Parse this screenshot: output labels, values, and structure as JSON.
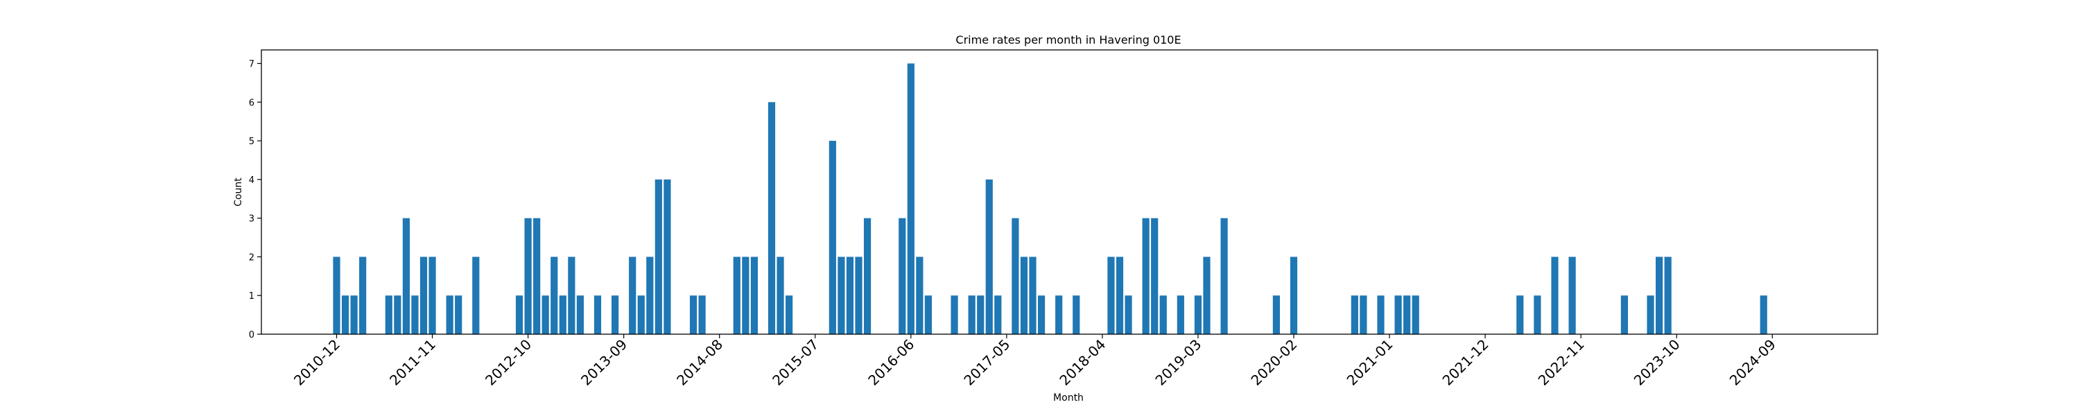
{
  "chart_data": {
    "type": "bar",
    "title": "Crime rates per month in Havering 010E",
    "xlabel": "Month",
    "ylabel": "Count",
    "ylim": [
      0,
      7.35
    ],
    "yticks": [
      0,
      1,
      2,
      3,
      4,
      5,
      6,
      7
    ],
    "xticks": [
      "2010-12",
      "2011-11",
      "2012-10",
      "2013-09",
      "2014-08",
      "2015-07",
      "2016-06",
      "2017-05",
      "2018-04",
      "2019-03",
      "2020-02",
      "2021-01",
      "2021-12",
      "2022-11",
      "2023-10",
      "2024-09"
    ],
    "bar_color": "#1f77b4",
    "grid": false,
    "legend": "none",
    "bars": [
      {
        "x": "2010-12",
        "y": 2
      },
      {
        "x": "2011-01",
        "y": 1
      },
      {
        "x": "2011-02",
        "y": 1
      },
      {
        "x": "2011-03",
        "y": 2
      },
      {
        "x": "2011-06",
        "y": 1
      },
      {
        "x": "2011-07",
        "y": 1
      },
      {
        "x": "2011-08",
        "y": 3
      },
      {
        "x": "2011-09",
        "y": 1
      },
      {
        "x": "2011-10",
        "y": 2
      },
      {
        "x": "2011-11",
        "y": 2
      },
      {
        "x": "2012-01",
        "y": 1
      },
      {
        "x": "2012-02",
        "y": 1
      },
      {
        "x": "2012-04",
        "y": 2
      },
      {
        "x": "2012-09",
        "y": 1
      },
      {
        "x": "2012-10",
        "y": 3
      },
      {
        "x": "2012-11",
        "y": 3
      },
      {
        "x": "2012-12",
        "y": 1
      },
      {
        "x": "2013-01",
        "y": 2
      },
      {
        "x": "2013-02",
        "y": 1
      },
      {
        "x": "2013-03",
        "y": 2
      },
      {
        "x": "2013-04",
        "y": 1
      },
      {
        "x": "2013-06",
        "y": 1
      },
      {
        "x": "2013-08",
        "y": 1
      },
      {
        "x": "2013-10",
        "y": 2
      },
      {
        "x": "2013-11",
        "y": 1
      },
      {
        "x": "2013-12",
        "y": 2
      },
      {
        "x": "2014-01",
        "y": 4
      },
      {
        "x": "2014-02",
        "y": 4
      },
      {
        "x": "2014-05",
        "y": 1
      },
      {
        "x": "2014-06",
        "y": 1
      },
      {
        "x": "2014-10",
        "y": 2
      },
      {
        "x": "2014-11",
        "y": 2
      },
      {
        "x": "2014-12",
        "y": 2
      },
      {
        "x": "2015-02",
        "y": 6
      },
      {
        "x": "2015-03",
        "y": 2
      },
      {
        "x": "2015-04",
        "y": 1
      },
      {
        "x": "2015-09",
        "y": 5
      },
      {
        "x": "2015-10",
        "y": 2
      },
      {
        "x": "2015-11",
        "y": 2
      },
      {
        "x": "2015-12",
        "y": 2
      },
      {
        "x": "2016-01",
        "y": 3
      },
      {
        "x": "2016-05",
        "y": 3
      },
      {
        "x": "2016-06",
        "y": 7
      },
      {
        "x": "2016-07",
        "y": 2
      },
      {
        "x": "2016-08",
        "y": 1
      },
      {
        "x": "2016-11",
        "y": 1
      },
      {
        "x": "2017-01",
        "y": 1
      },
      {
        "x": "2017-02",
        "y": 1
      },
      {
        "x": "2017-03",
        "y": 4
      },
      {
        "x": "2017-04",
        "y": 1
      },
      {
        "x": "2017-06",
        "y": 3
      },
      {
        "x": "2017-07",
        "y": 2
      },
      {
        "x": "2017-08",
        "y": 2
      },
      {
        "x": "2017-09",
        "y": 1
      },
      {
        "x": "2017-11",
        "y": 1
      },
      {
        "x": "2018-01",
        "y": 1
      },
      {
        "x": "2018-05",
        "y": 2
      },
      {
        "x": "2018-06",
        "y": 2
      },
      {
        "x": "2018-07",
        "y": 1
      },
      {
        "x": "2018-09",
        "y": 3
      },
      {
        "x": "2018-10",
        "y": 3
      },
      {
        "x": "2018-11",
        "y": 1
      },
      {
        "x": "2019-01",
        "y": 1
      },
      {
        "x": "2019-03",
        "y": 1
      },
      {
        "x": "2019-04",
        "y": 2
      },
      {
        "x": "2019-06",
        "y": 3
      },
      {
        "x": "2019-12",
        "y": 1
      },
      {
        "x": "2020-02",
        "y": 2
      },
      {
        "x": "2020-09",
        "y": 1
      },
      {
        "x": "2020-10",
        "y": 1
      },
      {
        "x": "2020-12",
        "y": 1
      },
      {
        "x": "2021-02",
        "y": 1
      },
      {
        "x": "2021-03",
        "y": 1
      },
      {
        "x": "2021-04",
        "y": 1
      },
      {
        "x": "2022-04",
        "y": 1
      },
      {
        "x": "2022-06",
        "y": 1
      },
      {
        "x": "2022-08",
        "y": 2
      },
      {
        "x": "2022-10",
        "y": 2
      },
      {
        "x": "2023-04",
        "y": 1
      },
      {
        "x": "2023-07",
        "y": 1
      },
      {
        "x": "2023-08",
        "y": 2
      },
      {
        "x": "2023-09",
        "y": 2
      },
      {
        "x": "2024-08",
        "y": 1
      }
    ]
  }
}
